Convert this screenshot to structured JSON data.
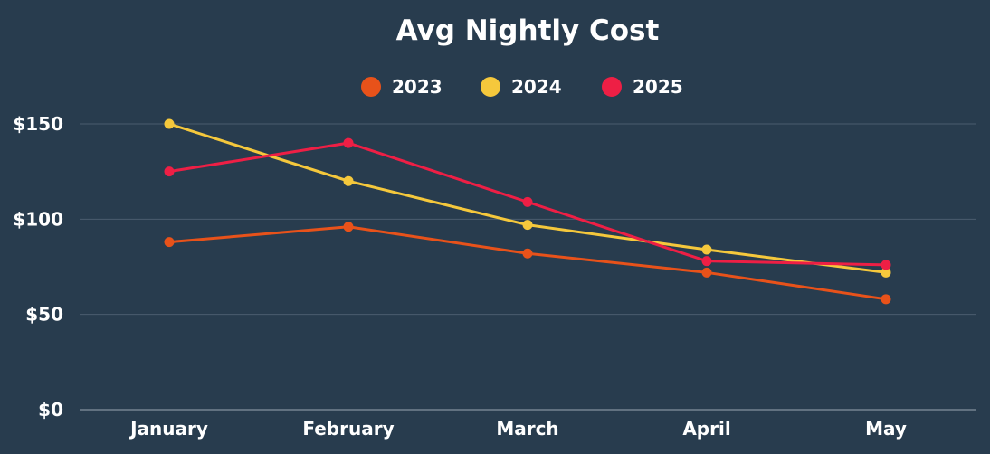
{
  "chart_data": {
    "type": "line",
    "title": "Avg Nightly Cost",
    "categories": [
      "January",
      "February",
      "March",
      "April",
      "May"
    ],
    "ylim": [
      0,
      150
    ],
    "yticks": [
      0,
      50,
      100,
      150
    ],
    "ytick_labels": [
      "$0",
      "$50",
      "$100",
      "$150"
    ],
    "grid": true,
    "legend_position": "top-center",
    "series": [
      {
        "name": "2023",
        "color": "#e8521a",
        "values": [
          88,
          96,
          82,
          72,
          58
        ]
      },
      {
        "name": "2024",
        "color": "#f5c83c",
        "values": [
          150,
          120,
          97,
          84,
          72
        ]
      },
      {
        "name": "2025",
        "color": "#ee1f45",
        "values": [
          125,
          140,
          109,
          78,
          76
        ]
      }
    ]
  }
}
